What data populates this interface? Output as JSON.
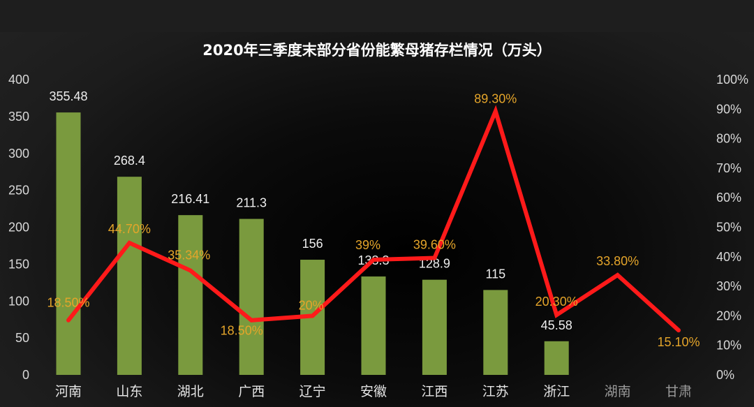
{
  "chart_data": {
    "type": "bar",
    "title": "2020年三季度末部分省份能繁母猪存栏情况（万头）",
    "categories": [
      "河南",
      "山东",
      "湖北",
      "广西",
      "辽宁",
      "安徽",
      "江西",
      "江苏",
      "浙江",
      "湖南",
      "甘肃"
    ],
    "series": [
      {
        "type": "bar",
        "axis": "left",
        "color": "#7a9a3e",
        "values": [
          355.48,
          268.4,
          216.41,
          211.3,
          156,
          133.3,
          128.9,
          115,
          45.58,
          null,
          null
        ],
        "labels": [
          "355.48",
          "268.4",
          "216.41",
          "211.3",
          "156",
          "133.3",
          "128.9",
          "115",
          "45.58",
          "",
          ""
        ]
      },
      {
        "type": "line",
        "axis": "right",
        "color": "#ff1a1a",
        "values": [
          18.5,
          44.7,
          35.34,
          18.5,
          20,
          39,
          39.6,
          89.3,
          20.3,
          33.8,
          15.1
        ],
        "labels": [
          "18.50%",
          "44.70%",
          "35.34%",
          "18.50%",
          "20%",
          "39%",
          "39.60%",
          "89.30%",
          "20.30%",
          "33.80%",
          "15.10%"
        ]
      }
    ],
    "y_left": {
      "min": 0,
      "max": 400,
      "ticks": [
        0,
        50,
        100,
        150,
        200,
        250,
        300,
        350,
        400
      ]
    },
    "y_right": {
      "min": 0,
      "max": 100,
      "ticks": [
        "0%",
        "10%",
        "20%",
        "30%",
        "40%",
        "50%",
        "60%",
        "70%",
        "80%",
        "90%",
        "100%"
      ]
    },
    "grid": false,
    "legend": "none"
  }
}
